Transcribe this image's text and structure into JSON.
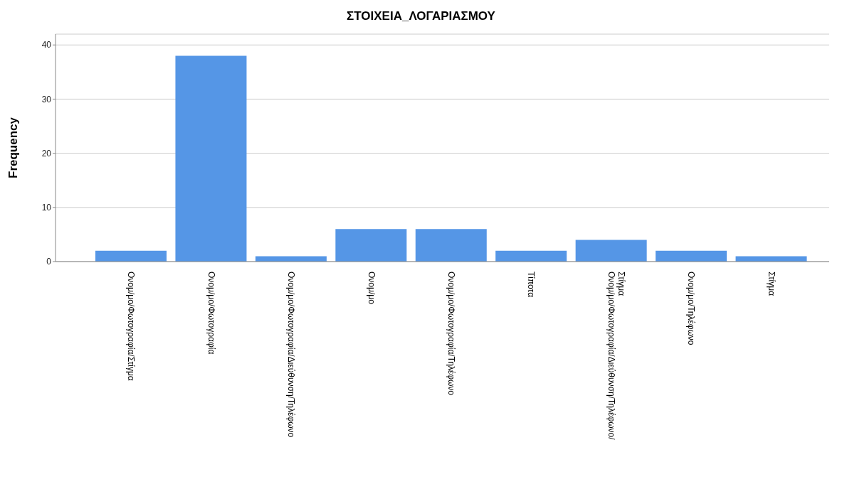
{
  "chart_data": {
    "type": "bar",
    "title": "ΣΤΟΙΧΕΙΑ_ΛΟΓΑΡΙΑΣΜΟΥ",
    "ylabel": "Frequency",
    "categories": [
      "Ονομ/μο/Φωτογραφία/Στίγμα",
      "Ονομ/μο/Φωτογραφία",
      "Ονομ/μο/Φωτογραφία/Διεύθυνση/Τηλέφωνο",
      "Ονομ/μο",
      "Ονομ/μο/Φωτογραφία/Τηλέφωνο",
      "Τίποτα",
      "Ονομ/μο/Φωτογραφία/Διεύθυνση/Τηλέφωνο/Στίγμα",
      "Ονομ/μο/Τηλέφωνο",
      "Στίγμα"
    ],
    "values": [
      2,
      38,
      1,
      6,
      6,
      2,
      4,
      2,
      1
    ],
    "color": "#5596e6",
    "ylim": [
      0,
      42
    ],
    "yticks": [
      0,
      10,
      20,
      30,
      40
    ],
    "grid": "y",
    "legend": false
  }
}
